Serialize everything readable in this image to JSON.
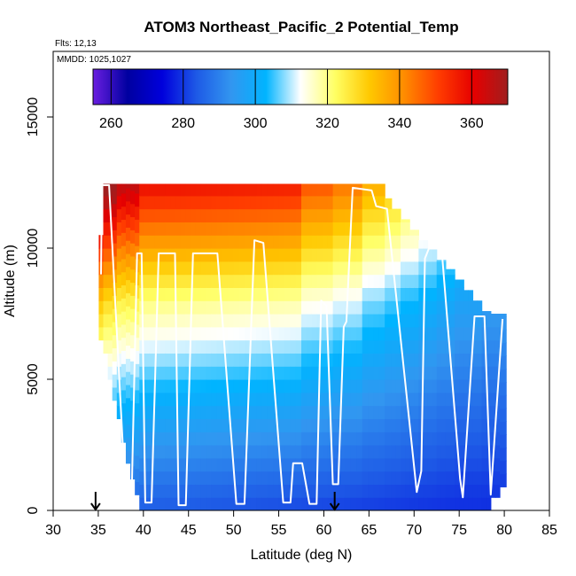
{
  "chart_data": {
    "type": "heatmap",
    "title": "ATOM3 Northeast_Pacific_2 Potential_Temp",
    "subtitle_flights": "Flts: 12,13",
    "subtitle_dates": "MMDD: 1025,1027",
    "xlabel": "Latitude (deg N)",
    "ylabel": "Altitude (m)",
    "xlim": [
      30,
      85
    ],
    "ylim": [
      0,
      17500
    ],
    "x_ticks": [
      "30",
      "35",
      "40",
      "45",
      "50",
      "55",
      "60",
      "65",
      "70",
      "75",
      "80",
      "85"
    ],
    "y_ticks": [
      "0",
      "5000",
      "10000",
      "15000"
    ],
    "colorbar": {
      "range": [
        255,
        370
      ],
      "ticks": [
        "260",
        "280",
        "300",
        "320",
        "340",
        "360"
      ],
      "colors": [
        "#6a1ee0",
        "#0000a0",
        "#0000dc",
        "#1e5ae6",
        "#3296f0",
        "#00b4ff",
        "#ffffff",
        "#ffff64",
        "#ffc800",
        "#ff8c00",
        "#ff3c00",
        "#e60000",
        "#a01e1e"
      ]
    },
    "bin_km": 500,
    "columns": [
      {
        "lat": 35.3,
        "top": 10500,
        "bot": 6500,
        "s": 1.3
      },
      {
        "lat": 35.8,
        "top": 12450,
        "bot": 6000,
        "s": 1.2
      },
      {
        "lat": 36.3,
        "top": 12450,
        "bot": 5000,
        "s": 1.2
      },
      {
        "lat": 36.8,
        "top": 12450,
        "bot": 4200,
        "s": 1.2
      },
      {
        "lat": 37.3,
        "top": 12450,
        "bot": 3500,
        "s": 1.1
      },
      {
        "lat": 37.8,
        "top": 12450,
        "bot": 2600,
        "s": 1.1
      },
      {
        "lat": 38.3,
        "top": 12450,
        "bot": 1800,
        "s": 1.1
      },
      {
        "lat": 38.8,
        "top": 12450,
        "bot": 1200,
        "s": 1.1
      },
      {
        "lat": 39.3,
        "top": 12450,
        "bot": 600,
        "s": 1.1
      },
      {
        "lat": 39.8,
        "top": 12450,
        "bot": 0,
        "s": 1.0
      },
      {
        "lat": 45.0,
        "top": 12450,
        "bot": 0,
        "s": 1.0
      },
      {
        "lat": 50.0,
        "top": 12450,
        "bot": 0,
        "s": 1.0
      },
      {
        "lat": 55.0,
        "top": 12450,
        "bot": 0,
        "s": 1.0
      },
      {
        "lat": 60.0,
        "top": 12450,
        "bot": 0,
        "s": 0.9
      },
      {
        "lat": 62.0,
        "top": 12450,
        "bot": 0,
        "s": 0.85
      },
      {
        "lat": 66.5,
        "top": 12450,
        "bot": 0,
        "s": 0.75
      },
      {
        "lat": 67.0,
        "top": 11900,
        "bot": 0,
        "s": 0.7
      },
      {
        "lat": 68.0,
        "top": 11500,
        "bot": 0,
        "s": 0.7
      },
      {
        "lat": 69.0,
        "top": 11100,
        "bot": 0,
        "s": 0.65
      },
      {
        "lat": 70.0,
        "top": 10700,
        "bot": 0,
        "s": 0.65
      },
      {
        "lat": 71.0,
        "top": 10300,
        "bot": 0,
        "s": 0.6
      },
      {
        "lat": 72.0,
        "top": 9950,
        "bot": 0,
        "s": 0.6
      },
      {
        "lat": 73.0,
        "top": 9550,
        "bot": 0,
        "s": 0.55
      },
      {
        "lat": 74.0,
        "top": 9200,
        "bot": 0,
        "s": 0.55
      },
      {
        "lat": 75.0,
        "top": 8800,
        "bot": 0,
        "s": 0.5
      },
      {
        "lat": 76.0,
        "top": 8400,
        "bot": 0,
        "s": 0.5
      },
      {
        "lat": 77.0,
        "top": 8000,
        "bot": 0,
        "s": 0.5
      },
      {
        "lat": 78.0,
        "top": 7600,
        "bot": 0,
        "s": 0.45
      },
      {
        "lat": 79.0,
        "top": 7500,
        "bot": 500,
        "s": 0.45
      },
      {
        "lat": 80.0,
        "top": 7500,
        "bot": 900,
        "s": 0.45
      }
    ],
    "flight_track": [
      [
        35.3,
        9000
      ],
      [
        35.4,
        12400
      ],
      [
        36.2,
        12400
      ],
      [
        38.0,
        600
      ],
      [
        38.7,
        600
      ],
      [
        39.3,
        9800
      ],
      [
        39.8,
        9800
      ],
      [
        40.2,
        300
      ],
      [
        40.9,
        300
      ],
      [
        41.7,
        9800
      ],
      [
        43.5,
        9800
      ],
      [
        43.9,
        200
      ],
      [
        44.7,
        200
      ],
      [
        45.5,
        9800
      ],
      [
        48.2,
        9800
      ],
      [
        50.3,
        250
      ],
      [
        51.2,
        250
      ],
      [
        52.3,
        10300
      ],
      [
        53.3,
        10200
      ],
      [
        55.5,
        300
      ],
      [
        56.3,
        300
      ],
      [
        56.6,
        1800
      ],
      [
        57.6,
        1800
      ],
      [
        58.4,
        250
      ],
      [
        59.2,
        250
      ],
      [
        59.7,
        8000
      ],
      [
        60.3,
        7800
      ],
      [
        61.0,
        1000
      ],
      [
        61.6,
        1000
      ],
      [
        62.2,
        7000
      ],
      [
        62.5,
        7200
      ],
      [
        63.2,
        12300
      ],
      [
        65.3,
        12200
      ],
      [
        65.8,
        11600
      ],
      [
        67.0,
        11500
      ],
      [
        70.3,
        700
      ],
      [
        70.8,
        1500
      ],
      [
        71.2,
        9600
      ],
      [
        72.0,
        10300
      ],
      [
        73.0,
        10200
      ],
      [
        75.1,
        1200
      ],
      [
        75.4,
        500
      ],
      [
        76.7,
        7400
      ],
      [
        77.8,
        7400
      ],
      [
        78.5,
        600
      ],
      [
        79.8,
        7300
      ]
    ],
    "flight_arrows": [
      34.7,
      61.2
    ]
  }
}
